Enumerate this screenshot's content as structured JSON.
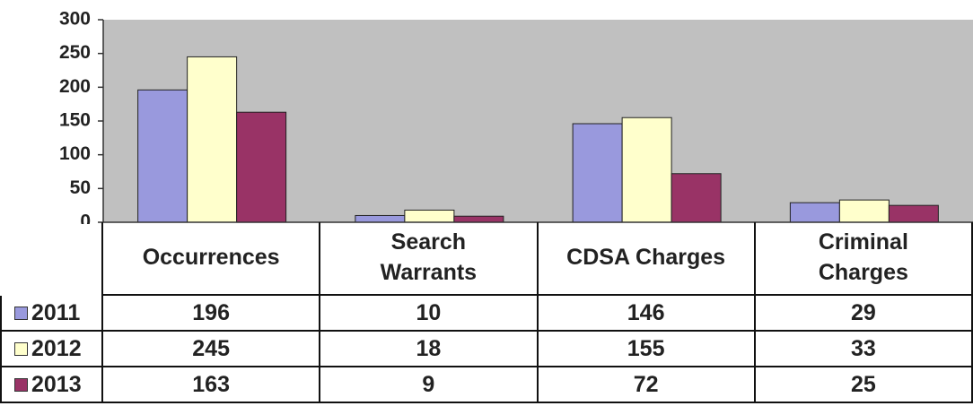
{
  "chart_data": {
    "type": "bar",
    "categories": [
      "Occurrences",
      "Search Warrants",
      "CDSA Charges",
      "Criminal Charges"
    ],
    "series": [
      {
        "name": "2011",
        "color": "#9999dd",
        "values": [
          196,
          10,
          146,
          29
        ]
      },
      {
        "name": "2012",
        "color": "#ffffcc",
        "values": [
          245,
          18,
          155,
          33
        ]
      },
      {
        "name": "2013",
        "color": "#993366",
        "values": [
          163,
          9,
          72,
          25
        ]
      }
    ],
    "ylim": [
      0,
      300
    ],
    "yticks": [
      0,
      50,
      100,
      150,
      200,
      250,
      300
    ],
    "background": "#c0c0c0",
    "data_table": true
  }
}
